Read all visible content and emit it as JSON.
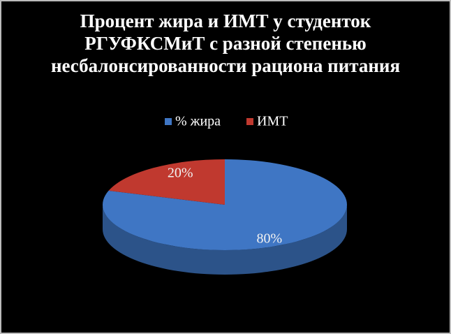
{
  "chart_data": {
    "type": "pie",
    "title": "Процент жира и ИМТ у студенток РГУФКСМиТ с разной степенью несбалонсированности рациона питания",
    "categories": [
      "% жира",
      "ИМТ"
    ],
    "values": [
      80,
      20
    ],
    "value_labels": [
      "80%",
      "20%"
    ],
    "colors": [
      "#3f76c4",
      "#c0392f"
    ],
    "legend": "top"
  }
}
